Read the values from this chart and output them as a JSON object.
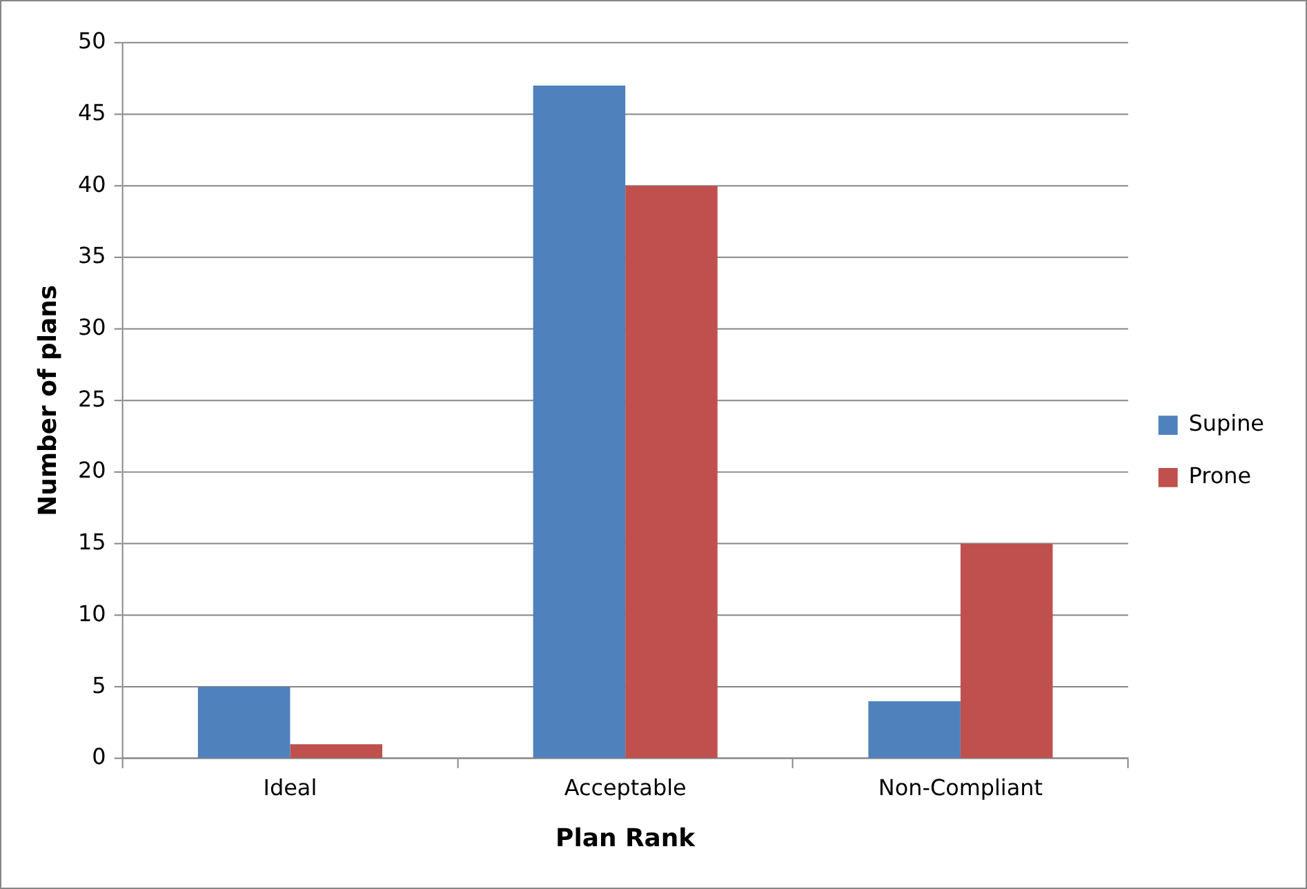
{
  "chart_data": {
    "type": "bar",
    "xlabel": "Plan Rank",
    "ylabel": "Number of plans",
    "categories": [
      "Ideal",
      "Acceptable",
      "Non-Compliant"
    ],
    "series": [
      {
        "name": "Supine",
        "color": "#4f81bd",
        "values": [
          5,
          47,
          4
        ]
      },
      {
        "name": "Prone",
        "color": "#c0504d",
        "values": [
          1,
          40,
          15
        ]
      }
    ],
    "ylim": [
      0,
      50
    ],
    "yticks": [
      0,
      5,
      10,
      15,
      20,
      25,
      30,
      35,
      40,
      45,
      50
    ],
    "grid": "y",
    "legend": "right"
  }
}
